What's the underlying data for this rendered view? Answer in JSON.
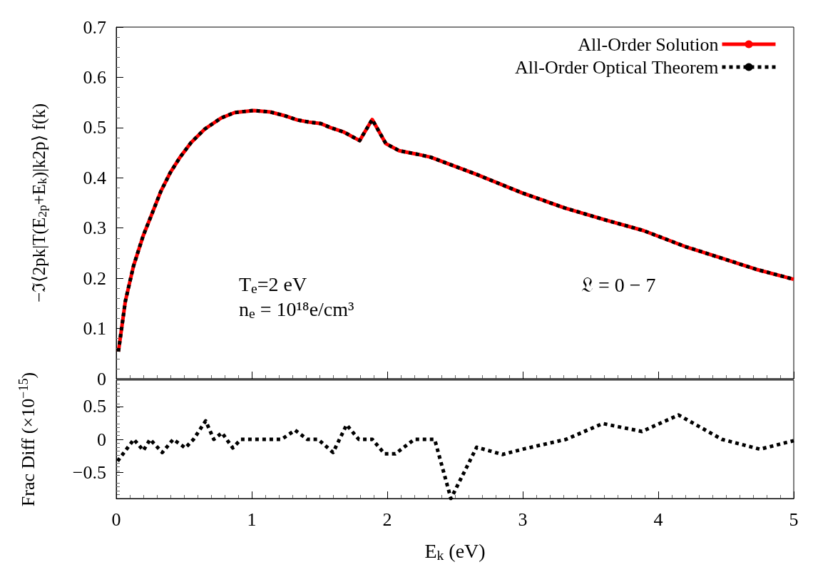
{
  "chart_data": [
    {
      "type": "line",
      "ylabel": "−ℑ⟨2pk|T(E$_{2p}$+E$_{k}$)|k2p⟩ f(k)",
      "x": [
        0.016,
        0.067,
        0.127,
        0.198,
        0.269,
        0.329,
        0.4,
        0.471,
        0.552,
        0.653,
        0.774,
        0.875,
        1.016,
        1.137,
        1.238,
        1.339,
        1.42,
        1.51,
        1.58,
        1.68,
        1.796,
        1.889,
        1.99,
        2.087,
        2.22,
        2.32,
        2.657,
        2.994,
        3.31,
        3.61,
        3.89,
        4.2,
        4.48,
        4.72,
        5.0
      ],
      "series": [
        {
          "name": "All-Order Solution",
          "color": "#ff0000",
          "line_style": "solid",
          "values": [
            0.054,
            0.154,
            0.224,
            0.284,
            0.332,
            0.373,
            0.411,
            0.441,
            0.47,
            0.497,
            0.519,
            0.53,
            0.534,
            0.531,
            0.524,
            0.515,
            0.511,
            0.508,
            0.5,
            0.491,
            0.474,
            0.516,
            0.468,
            0.454,
            0.447,
            0.441,
            0.407,
            0.37,
            0.34,
            0.316,
            0.295,
            0.263,
            0.239,
            0.218,
            0.198
          ]
        },
        {
          "name": "All-Order Optical Theorem",
          "color": "#000000",
          "line_style": "dotted",
          "values": [
            0.054,
            0.154,
            0.224,
            0.284,
            0.332,
            0.373,
            0.411,
            0.441,
            0.47,
            0.497,
            0.519,
            0.53,
            0.534,
            0.531,
            0.524,
            0.515,
            0.511,
            0.508,
            0.5,
            0.491,
            0.474,
            0.516,
            0.468,
            0.454,
            0.447,
            0.441,
            0.407,
            0.37,
            0.34,
            0.316,
            0.295,
            0.263,
            0.239,
            0.218,
            0.198
          ]
        }
      ],
      "xlim": [
        0,
        5
      ],
      "xticks": [
        {
          "value": 0,
          "label": null
        },
        {
          "value": 1,
          "label": null
        },
        {
          "value": 2,
          "label": null
        },
        {
          "value": 3,
          "label": null
        },
        {
          "value": 4,
          "label": null
        },
        {
          "value": 5,
          "label": null
        }
      ],
      "ylim": [
        0,
        0.7
      ],
      "yticks": [
        0,
        0.1,
        0.2,
        0.3,
        0.4,
        0.5,
        0.6,
        0.7
      ],
      "tick_labels": "y",
      "legend": "top right",
      "marker": "none",
      "grid": false,
      "annotations": [
        "T$_{e}$=2 eV",
        "n$_{e}$ = 10¹⁸e/cm³",
        "𝔏 = 0 − 7"
      ]
    },
    {
      "type": "line",
      "xlabel": "E$_{k}$ (eV)",
      "ylabel": "Frac Diff (×10$^{−15}$)",
      "x": [
        0.01,
        0.13,
        0.2,
        0.25,
        0.34,
        0.42,
        0.51,
        0.57,
        0.66,
        0.72,
        0.78,
        0.86,
        0.92,
        1.22,
        1.32,
        1.41,
        1.49,
        1.6,
        1.7,
        1.79,
        1.89,
        1.98,
        2.06,
        2.2,
        2.35,
        2.47,
        2.66,
        2.85,
        3.02,
        3.32,
        3.59,
        3.88,
        4.15,
        4.47,
        4.75,
        5.0
      ],
      "series": [
        {
          "color": "#000000",
          "line_style": "dotted",
          "values": [
            -0.33,
            0,
            -0.17,
            0,
            -0.2,
            0,
            -0.13,
            0,
            0.28,
            0,
            0.1,
            -0.13,
            0,
            0,
            0.14,
            0,
            0,
            -0.2,
            0.22,
            0,
            0,
            -0.22,
            -0.22,
            0,
            0,
            -0.9,
            -0.12,
            -0.23,
            -0.14,
            0,
            0.24,
            0.12,
            0.37,
            0,
            -0.15,
            -0.02
          ]
        }
      ],
      "xlim": [
        0,
        5
      ],
      "xticks": [
        0,
        1,
        2,
        3,
        4,
        5
      ],
      "ylim": [
        -0.9,
        0.9
      ],
      "yticks": [
        {
          "value": -0.5,
          "label": "−0.5"
        },
        0,
        0.5
      ],
      "marker": "none",
      "grid": false
    }
  ]
}
